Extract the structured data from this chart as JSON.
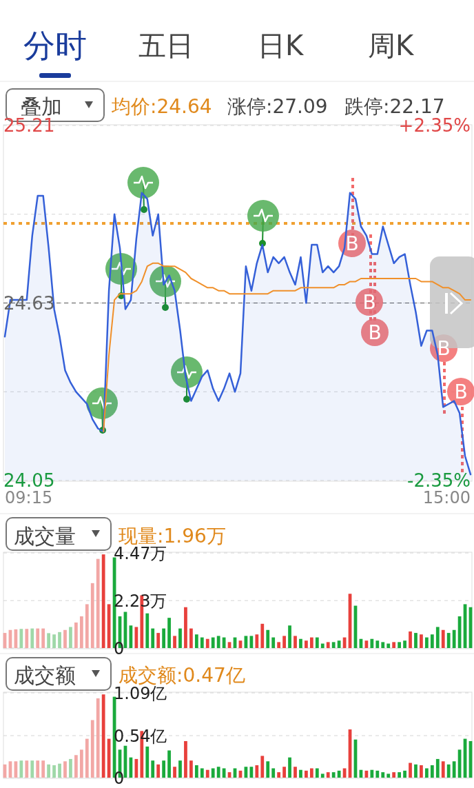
{
  "chart_data": [
    {
      "type": "line",
      "categories": [
        null,
        null,
        null,
        null,
        null,
        null,
        null,
        null,
        null,
        null,
        null,
        null,
        null,
        null,
        null,
        null,
        null,
        null,
        null,
        null,
        null,
        null,
        null,
        null,
        null,
        null,
        null,
        null,
        null,
        null,
        null,
        null,
        null,
        null,
        null,
        null,
        null,
        null,
        null,
        null,
        null,
        null,
        null,
        null,
        null,
        null,
        null,
        null,
        null,
        null,
        null,
        null,
        null,
        null,
        null,
        null,
        null,
        null,
        null,
        null,
        null,
        null,
        null,
        null,
        null,
        null,
        null,
        null,
        null,
        null,
        null,
        null,
        null,
        null,
        null,
        null,
        null,
        null,
        null,
        null,
        null,
        null,
        null,
        null,
        null,
        null
      ],
      "series": [
        {
          "type": "area",
          "color": "#3560d8",
          "values": [
            24.52,
            24.64,
            24.64,
            24.64,
            24.64,
            24.85,
            24.98,
            24.98,
            24.81,
            24.61,
            24.52,
            24.41,
            24.37,
            24.34,
            24.32,
            24.3,
            24.25,
            24.22,
            24.21,
            24.67,
            24.92,
            24.81,
            24.61,
            24.64,
            24.84,
            24.99,
            24.97,
            24.85,
            24.92,
            24.69,
            24.72,
            24.67,
            24.54,
            24.39,
            24.31,
            24.35,
            24.39,
            24.41,
            24.35,
            24.31,
            24.35,
            24.4,
            24.34,
            24.4,
            24.75,
            24.67,
            24.76,
            24.82,
            24.73,
            24.78,
            24.76,
            24.78,
            24.73,
            24.69,
            24.78,
            24.63,
            24.82,
            24.82,
            24.73,
            24.75,
            24.73,
            24.75,
            24.81,
            24.99,
            24.97,
            24.88,
            24.85,
            24.79,
            24.79,
            24.88,
            24.82,
            24.76,
            24.78,
            24.79,
            24.69,
            24.6,
            24.49,
            24.54,
            24.54,
            24.46,
            24.29,
            24.3,
            24.31,
            24.27,
            24.13,
            24.07
          ]
        },
        {
          "type": "line",
          "color": "#f0902a",
          "values": [
            null,
            null,
            null,
            null,
            null,
            null,
            null,
            null,
            null,
            null,
            null,
            null,
            null,
            null,
            null,
            null,
            null,
            null,
            24.21,
            24.46,
            24.64,
            24.66,
            24.66,
            24.66,
            24.67,
            24.7,
            24.75,
            24.76,
            24.76,
            24.75,
            24.75,
            24.75,
            24.74,
            24.73,
            24.71,
            24.7,
            24.69,
            24.68,
            24.68,
            24.67,
            24.67,
            24.66,
            24.66,
            24.66,
            24.66,
            24.66,
            24.66,
            24.66,
            24.66,
            24.67,
            24.67,
            24.67,
            24.67,
            24.67,
            24.68,
            24.68,
            24.68,
            24.68,
            24.68,
            24.68,
            24.68,
            24.69,
            24.69,
            24.7,
            24.7,
            24.71,
            24.71,
            24.71,
            24.71,
            24.71,
            24.71,
            24.71,
            24.71,
            24.71,
            24.71,
            24.71,
            24.7,
            24.7,
            24.7,
            24.69,
            24.68,
            24.68,
            24.67,
            24.66,
            24.64,
            24.64
          ]
        }
      ],
      "ylim": [
        24.05,
        25.21
      ],
      "yticks": [
        25.21,
        {
          "value": 24.92,
          "label": null
        },
        24.63,
        {
          "value": 24.34,
          "label": null
        },
        24.05
      ],
      "y2lim": [
        -2.35,
        2.35
      ],
      "y2ticks": [
        {
          "value": 2.35,
          "label": "+2.35%"
        },
        {
          "value": -2.35,
          "label": "-2.35%"
        }
      ],
      "grid": "y",
      "ref_lines": [
        {
          "axis": "y",
          "value": 24.63,
          "color": "#555555",
          "line_style": "dashed"
        },
        {
          "axis": "y",
          "value": 24.89,
          "color": "#f0a030",
          "line_style": "dotted"
        }
      ],
      "annotations": [
        "分时",
        "五日",
        "日K",
        "周K",
        "叠加",
        "均价:24.64",
        "涨停:27.09",
        "跌停:22.17",
        "B",
        "B",
        "B",
        "B",
        "B",
        "09:15",
        "15:00"
      ]
    },
    {
      "type": "bar",
      "categories": [
        null,
        null,
        null,
        null,
        null,
        null,
        null,
        null,
        null,
        null,
        null,
        null,
        null,
        null,
        null,
        null,
        null,
        null,
        null,
        null,
        null,
        null,
        null,
        null,
        null,
        null,
        null,
        null,
        null,
        null,
        null,
        null,
        null,
        null,
        null,
        null,
        null,
        null,
        null,
        null,
        null,
        null,
        null,
        null,
        null,
        null,
        null,
        null,
        null,
        null,
        null,
        null,
        null,
        null,
        null,
        null,
        null,
        null,
        null,
        null,
        null,
        null,
        null,
        null,
        null,
        null,
        null,
        null,
        null,
        null,
        null,
        null,
        null,
        null,
        null,
        null,
        null,
        null,
        null,
        null,
        null,
        null,
        null,
        null,
        null,
        null
      ],
      "values": [
        0.71,
        0.85,
        0.88,
        0.9,
        0.9,
        0.92,
        0.92,
        0.92,
        0.7,
        0.64,
        0.75,
        0.85,
        0.99,
        1.2,
        1.49,
        2.06,
        3.05,
        4.19,
        4.4,
        2.06,
        4.26,
        1.49,
        1.7,
        1.06,
        0.99,
        2.48,
        1.63,
        0.92,
        0.71,
        0.92,
        1.42,
        0.57,
        0.92,
        1.92,
        0.92,
        0.64,
        0.5,
        0.43,
        0.5,
        0.57,
        0.5,
        0.28,
        0.5,
        0.35,
        0.57,
        0.57,
        0.64,
        1.14,
        0.85,
        0.5,
        0.28,
        0.57,
        1.06,
        0.57,
        0.43,
        0.35,
        0.5,
        0.5,
        0.21,
        0.28,
        0.28,
        0.35,
        0.5,
        2.55,
        1.99,
        0.43,
        0.35,
        0.43,
        0.35,
        0.28,
        0.21,
        0.28,
        0.28,
        0.35,
        0.78,
        0.71,
        0.64,
        0.5,
        0.64,
        0.99,
        0.85,
        0.71,
        0.85,
        1.49,
        2.06,
        1.92
      ],
      "colors": [
        "#f2a7a5",
        "#f2a7a5",
        "#f2a7a5",
        "#9fd8a8",
        "#f2a7a5",
        "#9fd8a8",
        "#f2a7a5",
        "#f2a7a5",
        "#9fd8a8",
        "#9fd8a8",
        "#9fd8a8",
        "#f2a7a5",
        "#9fd8a8",
        "#f2a7a5",
        "#f2a7a5",
        "#f2a7a5",
        "#f2a7a5",
        "#f2a7a5",
        "#e8403c",
        "#e8403c",
        "#1aaa3c",
        "#1aaa3c",
        "#1aaa3c",
        "#1aaa3c",
        "#e8403c",
        "#e8403c",
        "#1aaa3c",
        "#1aaa3c",
        "#e8403c",
        "#1aaa3c",
        "#1aaa3c",
        "#e8403c",
        "#1aaa3c",
        "#e8403c",
        "#e8403c",
        "#1aaa3c",
        "#1aaa3c",
        "#e8403c",
        "#1aaa3c",
        "#1aaa3c",
        "#1aaa3c",
        "#e8403c",
        "#1aaa3c",
        "#e8403c",
        "#1aaa3c",
        "#1aaa3c",
        "#e8403c",
        "#e8403c",
        "#1aaa3c",
        "#1aaa3c",
        "#e8403c",
        "#e8403c",
        "#1aaa3c",
        "#e8403c",
        "#1aaa3c",
        "#e8403c",
        "#e8403c",
        "#1aaa3c",
        "#1aaa3c",
        "#e8403c",
        "#1aaa3c",
        "#1aaa3c",
        "#e8403c",
        "#e8403c",
        "#1aaa3c",
        "#1aaa3c",
        "#e8403c",
        "#1aaa3c",
        "#1aaa3c",
        "#1aaa3c",
        "#1aaa3c",
        "#e8403c",
        "#1aaa3c",
        "#1aaa3c",
        "#e8403c",
        "#1aaa3c",
        "#e8403c",
        "#1aaa3c",
        "#1aaa3c",
        "#1aaa3c",
        "#e8403c",
        "#1aaa3c",
        "#1aaa3c",
        "#1aaa3c",
        "#1aaa3c",
        "#1aaa3c"
      ],
      "ylim": [
        0,
        4.47
      ],
      "yticks": [
        {
          "value": 4.47,
          "label": "4.47万"
        },
        {
          "value": 2.23,
          "label": "2.23万"
        },
        0
      ],
      "grid": "y",
      "annotations": [
        "成交量",
        "现量:1.96万"
      ]
    },
    {
      "type": "bar",
      "categories": [
        null,
        null,
        null,
        null,
        null,
        null,
        null,
        null,
        null,
        null,
        null,
        null,
        null,
        null,
        null,
        null,
        null,
        null,
        null,
        null,
        null,
        null,
        null,
        null,
        null,
        null,
        null,
        null,
        null,
        null,
        null,
        null,
        null,
        null,
        null,
        null,
        null,
        null,
        null,
        null,
        null,
        null,
        null,
        null,
        null,
        null,
        null,
        null,
        null,
        null,
        null,
        null,
        null,
        null,
        null,
        null,
        null,
        null,
        null,
        null,
        null,
        null,
        null,
        null,
        null,
        null,
        null,
        null,
        null,
        null,
        null,
        null,
        null,
        null,
        null,
        null,
        null,
        null,
        null,
        null,
        null,
        null,
        null,
        null,
        null,
        null
      ],
      "values": [
        0.17,
        0.21,
        0.21,
        0.22,
        0.22,
        0.22,
        0.22,
        0.22,
        0.17,
        0.16,
        0.18,
        0.21,
        0.24,
        0.29,
        0.36,
        0.5,
        0.74,
        1.02,
        1.07,
        0.5,
        1.04,
        0.36,
        0.41,
        0.26,
        0.24,
        0.6,
        0.4,
        0.22,
        0.17,
        0.22,
        0.35,
        0.14,
        0.22,
        0.47,
        0.22,
        0.16,
        0.12,
        0.1,
        0.12,
        0.14,
        0.12,
        0.07,
        0.12,
        0.09,
        0.14,
        0.14,
        0.16,
        0.28,
        0.21,
        0.12,
        0.07,
        0.14,
        0.26,
        0.14,
        0.1,
        0.09,
        0.12,
        0.12,
        0.05,
        0.07,
        0.07,
        0.09,
        0.12,
        0.62,
        0.49,
        0.1,
        0.09,
        0.1,
        0.09,
        0.07,
        0.05,
        0.07,
        0.07,
        0.09,
        0.19,
        0.17,
        0.16,
        0.12,
        0.16,
        0.24,
        0.21,
        0.17,
        0.21,
        0.36,
        0.5,
        0.47
      ],
      "colors": [
        "#f2a7a5",
        "#f2a7a5",
        "#f2a7a5",
        "#9fd8a8",
        "#f2a7a5",
        "#9fd8a8",
        "#f2a7a5",
        "#f2a7a5",
        "#9fd8a8",
        "#9fd8a8",
        "#9fd8a8",
        "#f2a7a5",
        "#9fd8a8",
        "#f2a7a5",
        "#f2a7a5",
        "#f2a7a5",
        "#f2a7a5",
        "#f2a7a5",
        "#e8403c",
        "#e8403c",
        "#1aaa3c",
        "#1aaa3c",
        "#1aaa3c",
        "#1aaa3c",
        "#e8403c",
        "#e8403c",
        "#1aaa3c",
        "#1aaa3c",
        "#e8403c",
        "#1aaa3c",
        "#1aaa3c",
        "#e8403c",
        "#1aaa3c",
        "#e8403c",
        "#e8403c",
        "#1aaa3c",
        "#1aaa3c",
        "#e8403c",
        "#1aaa3c",
        "#1aaa3c",
        "#1aaa3c",
        "#e8403c",
        "#1aaa3c",
        "#e8403c",
        "#1aaa3c",
        "#1aaa3c",
        "#e8403c",
        "#e8403c",
        "#1aaa3c",
        "#1aaa3c",
        "#e8403c",
        "#e8403c",
        "#1aaa3c",
        "#e8403c",
        "#1aaa3c",
        "#e8403c",
        "#e8403c",
        "#1aaa3c",
        "#1aaa3c",
        "#e8403c",
        "#1aaa3c",
        "#1aaa3c",
        "#e8403c",
        "#e8403c",
        "#1aaa3c",
        "#1aaa3c",
        "#e8403c",
        "#1aaa3c",
        "#1aaa3c",
        "#1aaa3c",
        "#1aaa3c",
        "#e8403c",
        "#1aaa3c",
        "#1aaa3c",
        "#e8403c",
        "#1aaa3c",
        "#e8403c",
        "#1aaa3c",
        "#1aaa3c",
        "#1aaa3c",
        "#e8403c",
        "#1aaa3c",
        "#1aaa3c",
        "#1aaa3c",
        "#1aaa3c",
        "#1aaa3c"
      ],
      "ylim": [
        0,
        1.09
      ],
      "yticks": [
        {
          "value": 1.09,
          "label": "1.09亿"
        },
        {
          "value": 0.54,
          "label": "0.54亿"
        },
        0
      ],
      "grid": "y",
      "annotations": [
        "成交额",
        "成交额:0.47亿"
      ]
    }
  ]
}
